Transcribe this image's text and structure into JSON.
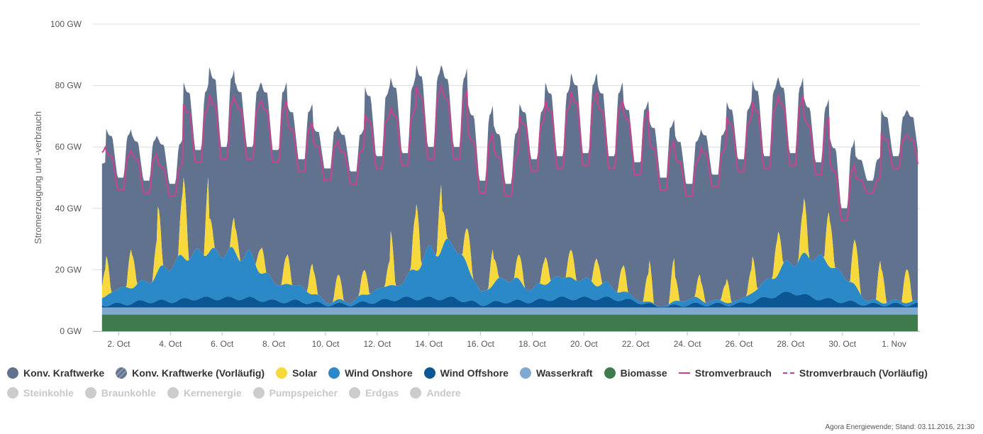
{
  "chart_data": {
    "type": "area",
    "ylabel": "Stromerzeugung und -verbrauch",
    "ylim": [
      0,
      100
    ],
    "y_ticks": [
      "0 GW",
      "20 GW",
      "40 GW",
      "60 GW",
      "80 GW",
      "100 GW"
    ],
    "y_tick_values": [
      0,
      20,
      40,
      60,
      80,
      100
    ],
    "x_range_days": [
      1,
      33
    ],
    "x_ticks": [
      {
        "day": 2,
        "label": "2. Oct"
      },
      {
        "day": 4,
        "label": "4. Oct"
      },
      {
        "day": 6,
        "label": "6. Oct"
      },
      {
        "day": 8,
        "label": "8. Oct"
      },
      {
        "day": 10,
        "label": "10. Oct"
      },
      {
        "day": 12,
        "label": "12. Oct"
      },
      {
        "day": 14,
        "label": "14. Oct"
      },
      {
        "day": 16,
        "label": "16. Oct"
      },
      {
        "day": 18,
        "label": "18. Oct"
      },
      {
        "day": 20,
        "label": "20. Oct"
      },
      {
        "day": 22,
        "label": "22. Oct"
      },
      {
        "day": 24,
        "label": "24. Oct"
      },
      {
        "day": 26,
        "label": "26. Oct"
      },
      {
        "day": 28,
        "label": "28. Oct"
      },
      {
        "day": 30,
        "label": "30. Oct"
      },
      {
        "day": 32,
        "label": "1. Nov"
      }
    ],
    "grid": true,
    "legend_position": "bottom-left",
    "daily": {
      "day": [
        1,
        2,
        3,
        4,
        5,
        6,
        7,
        8,
        9,
        10,
        11,
        12,
        13,
        14,
        15,
        16,
        17,
        18,
        19,
        20,
        21,
        22,
        23,
        24,
        25,
        26,
        27,
        28,
        29,
        30,
        31,
        32
      ],
      "total_peak_GW": [
        55,
        66,
        64,
        63,
        81,
        86,
        81,
        81,
        74,
        67,
        66,
        80,
        83,
        87,
        86,
        74,
        67,
        74,
        81,
        84,
        81,
        75,
        69,
        64,
        66,
        75,
        82,
        83,
        76,
        63,
        57,
        72
      ],
      "consumption_peak_GW": [
        60,
        59,
        58,
        55,
        74,
        77,
        75,
        75,
        68,
        62,
        60,
        71,
        73,
        80,
        79,
        65,
        59,
        70,
        75,
        78,
        75,
        72,
        62,
        57,
        60,
        70,
        75,
        77,
        70,
        55,
        50,
        64
      ],
      "consumption_min_GW": [
        48,
        46,
        45,
        44,
        55,
        56,
        56,
        55,
        52,
        49,
        48,
        53,
        54,
        56,
        56,
        45,
        44,
        52,
        53,
        54,
        53,
        51,
        46,
        44,
        47,
        52,
        53,
        54,
        51,
        36,
        45,
        53
      ],
      "solar_peak_GW": [
        9,
        13,
        11,
        21,
        26,
        11,
        8,
        9,
        10,
        8,
        8,
        8,
        18,
        22,
        12,
        12,
        8,
        8,
        9,
        9,
        8,
        9,
        14,
        8,
        6,
        8,
        12,
        14,
        18,
        15,
        14,
        11
      ],
      "wind_onshore_GW": [
        1,
        5,
        6,
        12,
        15,
        15,
        14,
        6,
        5,
        1,
        1,
        4,
        5,
        15,
        18,
        4,
        8,
        4,
        7,
        6,
        4,
        1,
        0,
        2,
        1,
        1,
        5,
        10,
        14,
        9,
        1,
        1
      ],
      "wind_offshore_GW": [
        1,
        1,
        2,
        2,
        3,
        3,
        3,
        2,
        2,
        1,
        1,
        2,
        3,
        3,
        3,
        1,
        2,
        2,
        3,
        3,
        3,
        2,
        0,
        1,
        1,
        1,
        3,
        5,
        3,
        2,
        1,
        1
      ],
      "hydro_GW": [
        2.3,
        2.3,
        2.3,
        2.3,
        2.3,
        2.3,
        2.3,
        2.3,
        2.3,
        2.3,
        2.3,
        2.3,
        2.3,
        2.3,
        2.3,
        2.3,
        2.3,
        2.3,
        2.3,
        2.3,
        2.3,
        2.3,
        2.3,
        2.3,
        2.3,
        2.3,
        2.3,
        2.3,
        2.3,
        2.3,
        2.3,
        2.3
      ],
      "biomass_GW": [
        5.4,
        5.4,
        5.4,
        5.4,
        5.4,
        5.4,
        5.4,
        5.4,
        5.4,
        5.4,
        5.4,
        5.4,
        5.4,
        5.4,
        5.4,
        5.4,
        5.4,
        5.4,
        5.4,
        5.4,
        5.4,
        5.4,
        5.4,
        5.4,
        5.4,
        5.4,
        5.4,
        5.4,
        5.4,
        5.4,
        5.4,
        5.4
      ]
    },
    "series": [
      {
        "name": "Konv. Kraftwerke",
        "color": "#61728f",
        "kind": "area"
      },
      {
        "name": "Konv. Kraftwerke (Vorläufig)",
        "color": "#61728f",
        "kind": "area"
      },
      {
        "name": "Solar",
        "color": "#f7d93d",
        "kind": "area"
      },
      {
        "name": "Wind Onshore",
        "color": "#2c89c8",
        "kind": "area"
      },
      {
        "name": "Wind Offshore",
        "color": "#0b5794",
        "kind": "area"
      },
      {
        "name": "Wasserkraft",
        "color": "#7fa9d1",
        "kind": "area"
      },
      {
        "name": "Biomasse",
        "color": "#3e7a4b",
        "kind": "area"
      },
      {
        "name": "Stromverbrauch",
        "color": "#c8448e",
        "kind": "line"
      },
      {
        "name": "Stromverbrauch (Vorläufig)",
        "color": "#c8448e",
        "kind": "dashed"
      }
    ]
  },
  "legend": {
    "visible": [
      {
        "label": "Konv. Kraftwerke",
        "color": "#61728f",
        "icon": "circle"
      },
      {
        "label": "Konv. Kraftwerke (Vorläufig)",
        "color": "#61728f",
        "icon": "hatched-circle"
      },
      {
        "label": "Solar",
        "color": "#f7d93d",
        "icon": "circle"
      },
      {
        "label": "Wind Onshore",
        "color": "#2c89c8",
        "icon": "circle"
      },
      {
        "label": "Wind Offshore",
        "color": "#0b5794",
        "icon": "circle"
      },
      {
        "label": "Wasserkraft",
        "color": "#7fa9d1",
        "icon": "circle"
      },
      {
        "label": "Biomasse",
        "color": "#3e7a4b",
        "icon": "circle"
      },
      {
        "label": "Stromverbrauch",
        "color": "#c8448e",
        "icon": "line"
      },
      {
        "label": "Stromverbrauch (Vorläufig)",
        "color": "#c8448e",
        "icon": "dashed-line"
      }
    ],
    "hidden": [
      {
        "label": "Steinkohle",
        "color": "#cccccc",
        "icon": "circle"
      },
      {
        "label": "Braunkohle",
        "color": "#cccccc",
        "icon": "circle"
      },
      {
        "label": "Kernenergie",
        "color": "#cccccc",
        "icon": "circle"
      },
      {
        "label": "Pumpspeicher",
        "color": "#cccccc",
        "icon": "circle"
      },
      {
        "label": "Erdgas",
        "color": "#cccccc",
        "icon": "circle"
      },
      {
        "label": "Andere",
        "color": "#cccccc",
        "icon": "circle"
      }
    ]
  },
  "credit": "Agora Energiewende; Stand: 03.11.2016, 21:30"
}
